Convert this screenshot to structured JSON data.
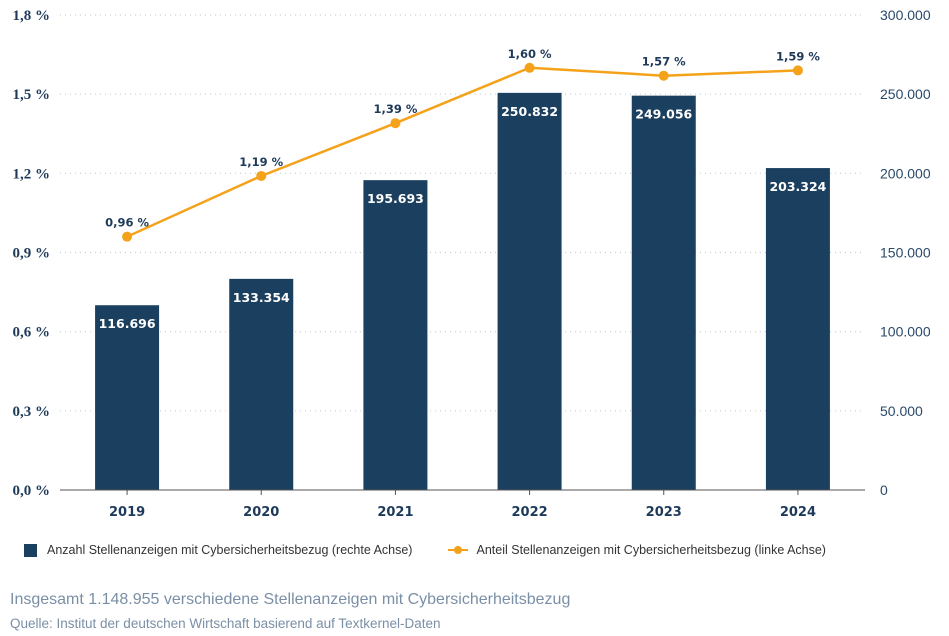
{
  "chart_data": {
    "type": "bar+line",
    "categories": [
      "2019",
      "2020",
      "2021",
      "2022",
      "2023",
      "2024"
    ],
    "series": [
      {
        "name": "Anzahl Stellenanzeigen mit Cybersicherheitsbezug (rechte Achse)",
        "type": "bar",
        "axis": "right",
        "values": [
          116696,
          133354,
          195693,
          250832,
          249056,
          203324
        ],
        "labels": [
          "116.696",
          "133.354",
          "195.693",
          "250.832",
          "249.056",
          "203.324"
        ],
        "color": "#1b3f5e"
      },
      {
        "name": "Anteil Stellenanzeigen mit Cybersicherheitsbezug (linke Achse)",
        "type": "line",
        "axis": "left",
        "values": [
          0.96,
          1.19,
          1.39,
          1.6,
          1.57,
          1.59
        ],
        "labels": [
          "0,96 %",
          "1,19 %",
          "1,39 %",
          "1,60 %",
          "1,57 %",
          "1,59 %"
        ],
        "color": "#f5a21b"
      }
    ],
    "left_axis": {
      "ylim": [
        0,
        1.8
      ],
      "ticks": [
        "0,0 %",
        "0,3 %",
        "0,6 %",
        "0,9 %",
        "1,2 %",
        "1,5 %",
        "1,8 %"
      ]
    },
    "right_axis": {
      "ylim": [
        0,
        300000
      ],
      "ticks": [
        "0",
        "50.000",
        "100.000",
        "150.000",
        "200.000",
        "250.000",
        "300.000"
      ]
    },
    "grid": "horizontal dotted",
    "legend_position": "bottom"
  },
  "note": "Insgesamt 1.148.955 verschiedene Stellenanzeigen mit Cybersicherheitsbezug",
  "source": "Quelle: Institut der deutschen Wirtschaft basierend auf Textkernel-Daten"
}
